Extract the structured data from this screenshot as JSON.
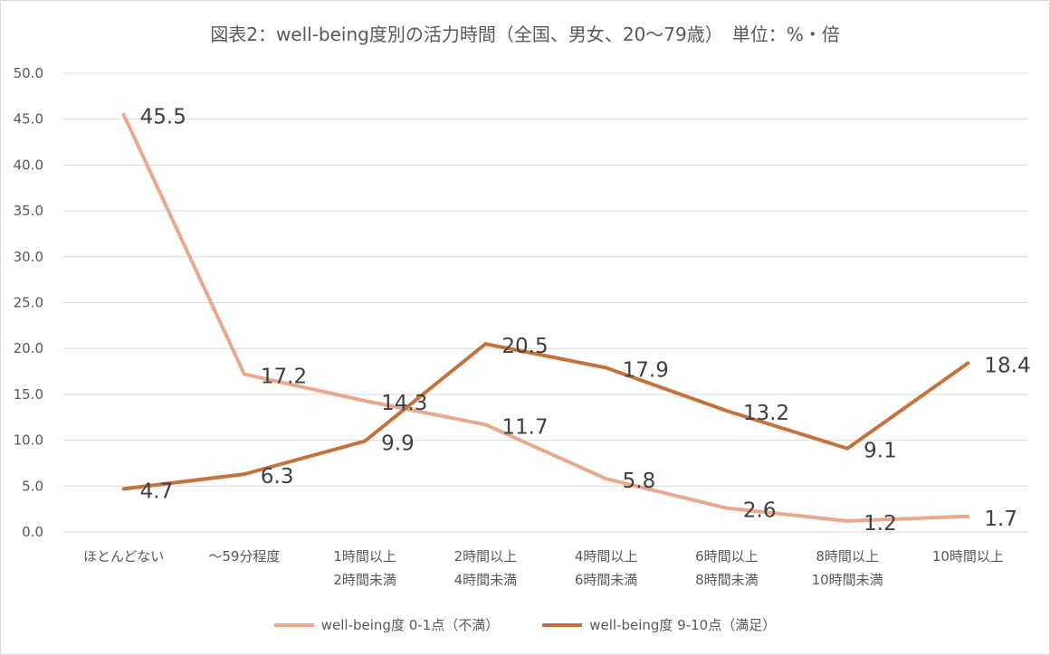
{
  "chart_data": {
    "type": "line",
    "title": "図表2：well-being度別の活力時間（全国、男女、20〜79歳）　単位：%・倍",
    "categories": [
      [
        "ほとんどない"
      ],
      [
        "〜59分程度"
      ],
      [
        "1時間以上",
        "2時間未満"
      ],
      [
        "2時間以上",
        "4時間未満"
      ],
      [
        "4時間以上",
        "6時間未満"
      ],
      [
        "6時間以上",
        "8時間未満"
      ],
      [
        "8時間以上",
        "10時間未満"
      ],
      [
        "10時間以上"
      ]
    ],
    "series": [
      {
        "name": "well-being度 0-1点（不満）",
        "color": "#e9a98c",
        "values": [
          45.5,
          17.2,
          14.3,
          11.7,
          5.8,
          2.6,
          1.2,
          1.7
        ],
        "labels": [
          "45.5",
          "17.2",
          "14.3",
          "11.7",
          "5.8",
          "2.6",
          "1.2",
          "1.7"
        ]
      },
      {
        "name": "well-being度 9-10点（満足）",
        "color": "#c5733a",
        "values": [
          4.7,
          6.3,
          9.9,
          20.5,
          17.9,
          13.2,
          9.1,
          18.4
        ],
        "labels": [
          "4.7",
          "6.3",
          "9.9",
          "20.5",
          "17.9",
          "13.2",
          "9.1",
          "18.4"
        ]
      }
    ],
    "ylim": [
      0,
      50
    ],
    "yticks": [
      "0.0",
      "5.0",
      "10.0",
      "15.0",
      "20.0",
      "25.0",
      "30.0",
      "35.0",
      "40.0",
      "45.0",
      "50.0"
    ],
    "grid": true,
    "legend_position": "bottom"
  }
}
